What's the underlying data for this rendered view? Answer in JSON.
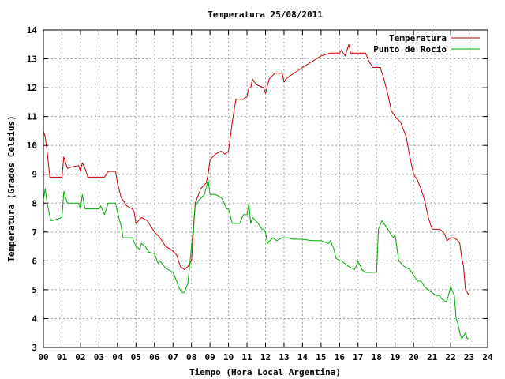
{
  "chart_data": {
    "type": "line",
    "title": "Temperatura 25/08/2011",
    "xlabel": "Tiempo (Hora Local Argentina)",
    "ylabel": "Temperatura (Grados Celsius)",
    "xlim": [
      0,
      24
    ],
    "ylim": [
      3,
      14
    ],
    "x_ticks": [
      "00",
      "01",
      "02",
      "03",
      "04",
      "05",
      "06",
      "07",
      "08",
      "09",
      "10",
      "11",
      "12",
      "13",
      "14",
      "15",
      "16",
      "17",
      "18",
      "19",
      "20",
      "21",
      "22",
      "23",
      "24"
    ],
    "y_ticks": [
      "3",
      "4",
      "5",
      "6",
      "7",
      "8",
      "9",
      "10",
      "11",
      "12",
      "13",
      "14"
    ],
    "grid": true,
    "legend_position": "top-right",
    "series": [
      {
        "name": "Temperatura",
        "color": "#cc0000",
        "x": [
          0,
          0.1,
          0.2,
          0.35,
          0.5,
          1.0,
          1.1,
          1.3,
          1.5,
          1.9,
          2.0,
          2.1,
          2.25,
          2.4,
          2.6,
          3.0,
          3.3,
          3.5,
          3.6,
          3.9,
          4.0,
          4.2,
          4.3,
          4.5,
          4.8,
          4.9,
          5.0,
          5.3,
          5.6,
          5.8,
          6.0,
          6.3,
          6.6,
          7.0,
          7.2,
          7.4,
          7.6,
          7.8,
          8.0,
          8.2,
          8.5,
          8.8,
          8.9,
          9.0,
          9.3,
          9.6,
          9.8,
          10.0,
          10.2,
          10.4,
          10.6,
          10.8,
          11.0,
          11.1,
          11.2,
          11.3,
          11.5,
          11.9,
          12.0,
          12.2,
          12.5,
          12.9,
          13.0,
          13.1,
          13.3,
          14.0,
          14.5,
          15.0,
          15.5,
          16.0,
          16.1,
          16.3,
          16.4,
          16.5,
          16.6,
          17.0,
          17.2,
          17.4,
          17.6,
          17.8,
          18.0,
          18.2,
          18.4,
          18.6,
          18.8,
          19.0,
          19.3,
          19.6,
          19.8,
          20.0,
          20.2,
          20.4,
          20.6,
          20.8,
          21.0,
          21.2,
          21.4,
          21.6,
          21.7,
          21.8,
          22.0,
          22.2,
          22.4,
          22.5,
          22.6,
          22.7,
          22.8,
          23.0
        ],
        "values": [
          10.5,
          10.3,
          9.8,
          8.9,
          8.9,
          8.9,
          9.6,
          9.2,
          9.25,
          9.3,
          9.1,
          9.4,
          9.2,
          8.9,
          8.9,
          8.9,
          8.9,
          9.1,
          9.1,
          9.1,
          8.7,
          8.2,
          8.1,
          7.9,
          7.8,
          7.7,
          7.3,
          7.5,
          7.4,
          7.2,
          7.0,
          6.8,
          6.5,
          6.35,
          6.2,
          5.8,
          5.7,
          5.8,
          6.0,
          8.0,
          8.5,
          8.7,
          9.0,
          9.5,
          9.7,
          9.8,
          9.7,
          9.8,
          10.8,
          11.6,
          11.6,
          11.6,
          11.7,
          12.0,
          12.0,
          12.3,
          12.1,
          12.0,
          11.8,
          12.3,
          12.5,
          12.5,
          12.2,
          12.3,
          12.4,
          12.7,
          12.9,
          13.1,
          13.2,
          13.2,
          13.3,
          13.1,
          13.3,
          13.5,
          13.2,
          13.2,
          13.2,
          13.2,
          12.9,
          12.7,
          12.7,
          12.7,
          12.3,
          11.8,
          11.2,
          11.0,
          10.8,
          10.3,
          9.6,
          9.0,
          8.8,
          8.5,
          8.1,
          7.5,
          7.1,
          7.1,
          7.1,
          7.0,
          6.9,
          6.7,
          6.8,
          6.8,
          6.7,
          6.6,
          6.1,
          5.8,
          5.0,
          4.8
        ]
      },
      {
        "name": "Punto de Rocío",
        "color": "#00aa00",
        "x": [
          0,
          0.1,
          0.2,
          0.4,
          0.5,
          1.0,
          1.1,
          1.3,
          1.5,
          1.9,
          2.0,
          2.1,
          2.25,
          2.4,
          2.6,
          3.0,
          3.1,
          3.3,
          3.5,
          3.6,
          3.9,
          4.0,
          4.2,
          4.3,
          4.5,
          4.8,
          5.0,
          5.2,
          5.3,
          5.5,
          5.7,
          6.0,
          6.2,
          6.3,
          6.6,
          7.0,
          7.2,
          7.3,
          7.5,
          7.6,
          7.8,
          8.0,
          8.2,
          8.4,
          8.7,
          8.9,
          9.0,
          9.3,
          9.6,
          9.7,
          9.9,
          10.0,
          10.2,
          10.4,
          10.6,
          10.8,
          11.0,
          11.1,
          11.2,
          11.3,
          11.6,
          11.8,
          11.9,
          12.0,
          12.1,
          12.4,
          12.6,
          12.9,
          13.0,
          13.2,
          13.5,
          14.0,
          14.5,
          15.0,
          15.4,
          15.5,
          15.7,
          15.8,
          16.0,
          16.1,
          16.3,
          16.5,
          16.8,
          16.9,
          17.0,
          17.2,
          17.4,
          17.6,
          17.8,
          18.0,
          18.1,
          18.3,
          18.6,
          18.9,
          19.0,
          19.2,
          19.5,
          19.8,
          20.0,
          20.2,
          20.4,
          20.6,
          21.0,
          21.2,
          21.4,
          21.5,
          21.7,
          21.8,
          22.0,
          22.2,
          22.3,
          22.4,
          22.5,
          22.6,
          22.8,
          22.9,
          23.0
        ],
        "values": [
          8.1,
          8.5,
          8.0,
          7.4,
          7.4,
          7.5,
          8.4,
          8.0,
          8.0,
          8.0,
          7.8,
          8.3,
          7.8,
          7.8,
          7.8,
          7.8,
          7.9,
          7.6,
          8.0,
          8.0,
          8.0,
          7.7,
          7.2,
          6.8,
          6.8,
          6.8,
          6.5,
          6.4,
          6.6,
          6.5,
          6.3,
          6.25,
          5.9,
          6.0,
          5.75,
          5.6,
          5.3,
          5.1,
          4.9,
          4.9,
          5.2,
          6.5,
          7.9,
          8.1,
          8.3,
          8.8,
          8.3,
          8.3,
          8.2,
          8.1,
          7.8,
          7.8,
          7.3,
          7.3,
          7.3,
          7.6,
          7.6,
          8.0,
          7.3,
          7.5,
          7.3,
          7.1,
          7.1,
          7.0,
          6.6,
          6.8,
          6.7,
          6.8,
          6.8,
          6.8,
          6.75,
          6.75,
          6.7,
          6.7,
          6.6,
          6.7,
          6.4,
          6.1,
          6.0,
          6.0,
          5.9,
          5.8,
          5.7,
          5.8,
          6.0,
          5.7,
          5.6,
          5.6,
          5.6,
          5.6,
          7.1,
          7.4,
          7.1,
          6.8,
          6.9,
          6.0,
          5.8,
          5.7,
          5.5,
          5.3,
          5.3,
          5.1,
          4.9,
          4.8,
          4.8,
          4.7,
          4.6,
          4.6,
          5.1,
          4.8,
          4.0,
          3.8,
          3.5,
          3.3,
          3.5,
          3.3,
          3.3
        ]
      }
    ]
  }
}
